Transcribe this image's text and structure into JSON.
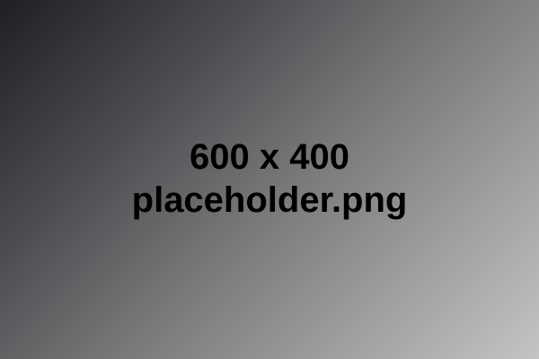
{
  "placeholder": {
    "dimensions_label": "600 x 400",
    "filename_label": "placeholder.png"
  },
  "colors": {
    "gradient_start": "#1f2024",
    "gradient_end": "#c4c4c4",
    "text": "#000000"
  }
}
